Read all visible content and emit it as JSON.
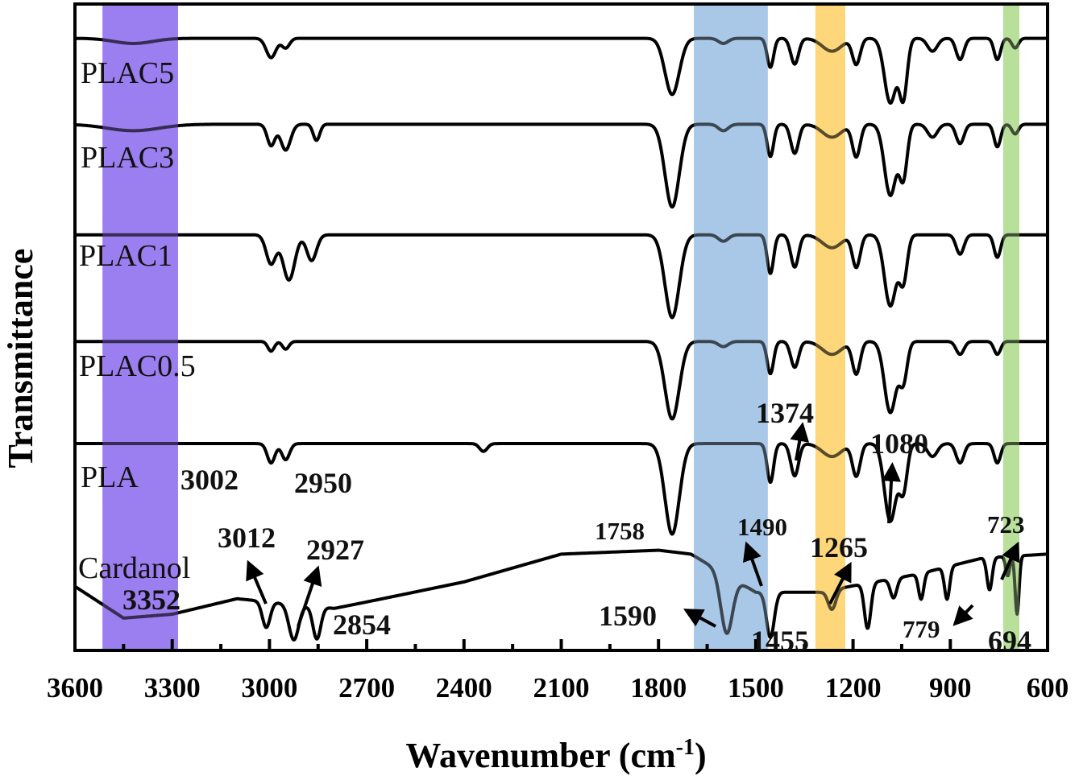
{
  "chart_data": {
    "type": "line",
    "title": "",
    "xlabel_parts": [
      "Wavenumber (cm",
      "-1",
      ")"
    ],
    "ylabel": "Transmittance",
    "xlim": [
      3600,
      600
    ],
    "ylim": [
      0,
      100
    ],
    "x_ticks": [
      "3600",
      "3300",
      "3000",
      "2700",
      "2400",
      "2100",
      "1800",
      "1500",
      "1200",
      "900",
      "600"
    ],
    "x_tick_values": [
      3600,
      3300,
      3000,
      2700,
      2400,
      2100,
      1800,
      1500,
      1200,
      900,
      600
    ],
    "grid": false,
    "legend": "none",
    "highlight_bands": [
      {
        "range": [
          3515,
          3282
        ],
        "color": "#9b7ff0"
      },
      {
        "range": [
          1691,
          1463
        ],
        "color": "#a9c8e8"
      },
      {
        "range": [
          1316,
          1224
        ],
        "color": "#fdd77a"
      },
      {
        "range": [
          737,
          687
        ],
        "color": "#b9e09a"
      }
    ],
    "series": [
      {
        "name": "PLAC5",
        "baseline": [
          [
            3600,
            94.7
          ],
          [
            600,
            94.7
          ]
        ],
        "peaks": [
          [
            3420,
            0.8,
            60
          ],
          [
            2995,
            3,
            15
          ],
          [
            2950,
            1.5,
            12
          ],
          [
            1758,
            8.7,
            22
          ],
          [
            1600,
            0.8,
            15
          ],
          [
            1455,
            4.5,
            10
          ],
          [
            1380,
            4,
            12
          ],
          [
            1265,
            2,
            30
          ],
          [
            1190,
            4,
            12
          ],
          [
            1085,
            10,
            18
          ],
          [
            1045,
            9,
            12
          ],
          [
            955,
            2,
            15
          ],
          [
            870,
            3.3,
            12
          ],
          [
            755,
            3.3,
            10
          ],
          [
            700,
            1.5,
            10
          ]
        ]
      },
      {
        "name": "PLAC3",
        "baseline": [
          [
            3600,
            81.4
          ],
          [
            600,
            81.4
          ]
        ],
        "peaks": [
          [
            3420,
            1,
            80
          ],
          [
            2995,
            3.3,
            12
          ],
          [
            2950,
            4,
            15
          ],
          [
            2855,
            2.5,
            10
          ],
          [
            1758,
            12.8,
            22
          ],
          [
            1600,
            1,
            15
          ],
          [
            1455,
            5,
            10
          ],
          [
            1380,
            4.5,
            12
          ],
          [
            1265,
            2,
            30
          ],
          [
            1190,
            5,
            12
          ],
          [
            1085,
            11,
            18
          ],
          [
            1045,
            8,
            12
          ],
          [
            955,
            2,
            15
          ],
          [
            870,
            3,
            12
          ],
          [
            755,
            3.5,
            10
          ],
          [
            700,
            1.5,
            10
          ]
        ]
      },
      {
        "name": "PLAC1",
        "baseline": [
          [
            3600,
            64.3
          ],
          [
            600,
            64.3
          ]
        ],
        "peaks": [
          [
            2995,
            4.5,
            15
          ],
          [
            2940,
            7,
            18
          ],
          [
            2870,
            4,
            15
          ],
          [
            1758,
            12.8,
            22
          ],
          [
            1600,
            1,
            15
          ],
          [
            1455,
            6,
            10
          ],
          [
            1380,
            5,
            12
          ],
          [
            1265,
            2,
            30
          ],
          [
            1190,
            5,
            12
          ],
          [
            1085,
            11,
            18
          ],
          [
            1045,
            7,
            12
          ],
          [
            870,
            3,
            12
          ],
          [
            755,
            3.5,
            10
          ]
        ]
      },
      {
        "name": "PLAC0.5",
        "baseline": [
          [
            3600,
            47.8
          ],
          [
            600,
            47.8
          ]
        ],
        "peaks": [
          [
            2995,
            1.5,
            10
          ],
          [
            2950,
            1.2,
            10
          ],
          [
            1758,
            12,
            22
          ],
          [
            1600,
            0.8,
            15
          ],
          [
            1455,
            5,
            10
          ],
          [
            1380,
            4,
            12
          ],
          [
            1265,
            2,
            30
          ],
          [
            1190,
            5,
            12
          ],
          [
            1085,
            11,
            18
          ],
          [
            1045,
            6,
            12
          ],
          [
            870,
            2,
            12
          ],
          [
            755,
            2,
            10
          ]
        ]
      },
      {
        "name": "PLA",
        "baseline": [
          [
            3600,
            32
          ],
          [
            600,
            32
          ]
        ],
        "peaks": [
          [
            2995,
            3,
            12
          ],
          [
            2950,
            2.5,
            12
          ],
          [
            2340,
            1.2,
            12
          ],
          [
            1758,
            14,
            22
          ],
          [
            1455,
            6,
            10
          ],
          [
            1380,
            5,
            12
          ],
          [
            1265,
            2,
            30
          ],
          [
            1190,
            5,
            12
          ],
          [
            1085,
            12,
            18
          ],
          [
            1045,
            7,
            12
          ],
          [
            955,
            2,
            15
          ],
          [
            870,
            3,
            12
          ],
          [
            755,
            3,
            10
          ]
        ]
      },
      {
        "name": "Cardanol",
        "baseline": [
          [
            3600,
            9.9
          ],
          [
            3450,
            5
          ],
          [
            3300,
            5.6
          ],
          [
            3100,
            8
          ],
          [
            2800,
            6.5
          ],
          [
            2700,
            7.5
          ],
          [
            2400,
            10.6
          ],
          [
            2100,
            14.9
          ],
          [
            1800,
            15.5
          ],
          [
            1700,
            14.9
          ],
          [
            1500,
            9
          ],
          [
            1300,
            9
          ],
          [
            1200,
            10
          ],
          [
            1000,
            11.8
          ],
          [
            800,
            14.3
          ],
          [
            600,
            14.9
          ]
        ],
        "peaks": [
          [
            3010,
            4,
            12
          ],
          [
            2925,
            5.5,
            15
          ],
          [
            2854,
            5,
            12
          ],
          [
            1590,
            9,
            18
          ],
          [
            1455,
            7,
            12
          ],
          [
            1265,
            3,
            12
          ],
          [
            1155,
            7,
            10
          ],
          [
            1075,
            3,
            10
          ],
          [
            990,
            4,
            8
          ],
          [
            910,
            5,
            8
          ],
          [
            779,
            5,
            8
          ],
          [
            723,
            3,
            6
          ],
          [
            694,
            9,
            6
          ]
        ]
      }
    ],
    "annotations": {
      "a3002": "3002",
      "a2950": "2950",
      "a3012": "3012",
      "a2927": "2927",
      "a3352": "3352",
      "a2854": "2854",
      "a1758": "1758",
      "a1490": "1490",
      "a1590": "1590",
      "a1455": "1455",
      "a1374": "1374",
      "a1080": "1080",
      "a1265": "1265",
      "a723": "723",
      "a779": "779",
      "a694": "694"
    },
    "colors": {
      "line": "#000000"
    }
  }
}
